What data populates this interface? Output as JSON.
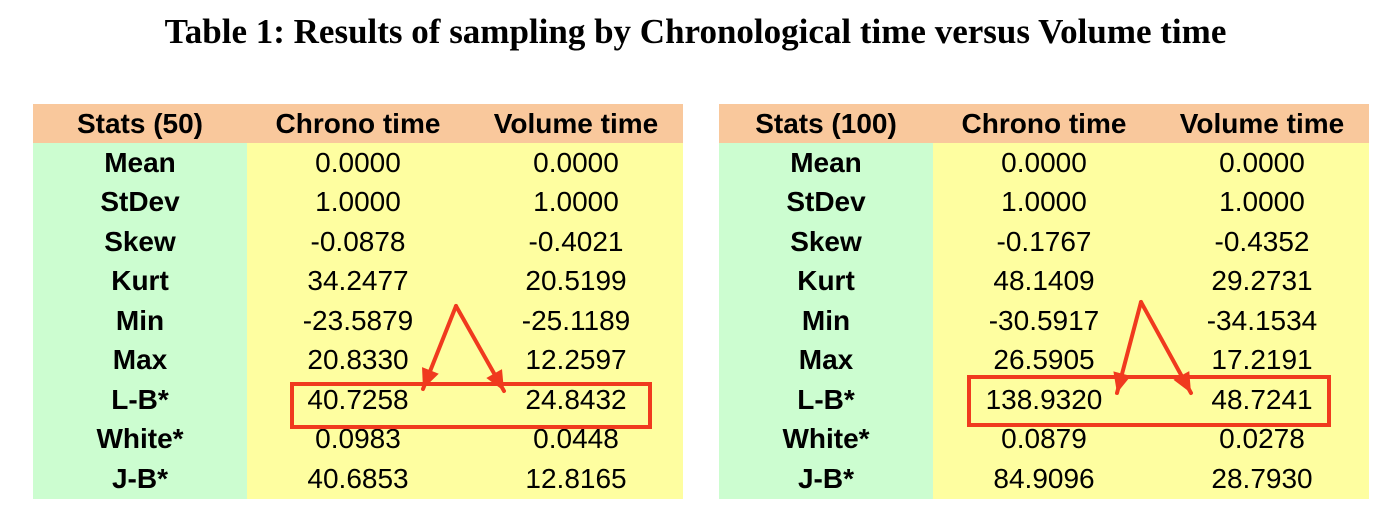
{
  "title": "Table 1:  Results of sampling by Chronological time versus Volume time",
  "colors": {
    "header_bg": "#f9c89c",
    "label_bg": "#ccfdd0",
    "value_bg": "#fefea0",
    "annotation": "#f03a1e"
  },
  "tables": [
    {
      "headers": [
        "Stats (50)",
        "Chrono time",
        "Volume time"
      ],
      "rows": [
        {
          "label": "Mean",
          "chrono": "0.0000",
          "volume": "0.0000"
        },
        {
          "label": "StDev",
          "chrono": "1.0000",
          "volume": "1.0000"
        },
        {
          "label": "Skew",
          "chrono": "-0.0878",
          "volume": "-0.4021"
        },
        {
          "label": "Kurt",
          "chrono": "34.2477",
          "volume": "20.5199"
        },
        {
          "label": "Min",
          "chrono": "-23.5879",
          "volume": "-25.1189"
        },
        {
          "label": "Max",
          "chrono": "20.8330",
          "volume": "12.2597"
        },
        {
          "label": "L-B*",
          "chrono": "40.7258",
          "volume": "24.8432"
        },
        {
          "label": "White*",
          "chrono": "0.0983",
          "volume": "0.0448"
        },
        {
          "label": "J-B*",
          "chrono": "40.6853",
          "volume": "12.8165"
        }
      ]
    },
    {
      "headers": [
        "Stats (100)",
        "Chrono time",
        "Volume time"
      ],
      "rows": [
        {
          "label": "Mean",
          "chrono": "0.0000",
          "volume": "0.0000"
        },
        {
          "label": "StDev",
          "chrono": "1.0000",
          "volume": "1.0000"
        },
        {
          "label": "Skew",
          "chrono": "-0.1767",
          "volume": "-0.4352"
        },
        {
          "label": "Kurt",
          "chrono": "48.1409",
          "volume": "29.2731"
        },
        {
          "label": "Min",
          "chrono": "-30.5917",
          "volume": "-34.1534"
        },
        {
          "label": "Max",
          "chrono": "26.5905",
          "volume": "17.2191"
        },
        {
          "label": "L-B*",
          "chrono": "138.9320",
          "volume": "48.7241"
        },
        {
          "label": "White*",
          "chrono": "0.0879",
          "volume": "0.0278"
        },
        {
          "label": "J-B*",
          "chrono": "84.9096",
          "volume": "28.7930"
        }
      ]
    }
  ]
}
